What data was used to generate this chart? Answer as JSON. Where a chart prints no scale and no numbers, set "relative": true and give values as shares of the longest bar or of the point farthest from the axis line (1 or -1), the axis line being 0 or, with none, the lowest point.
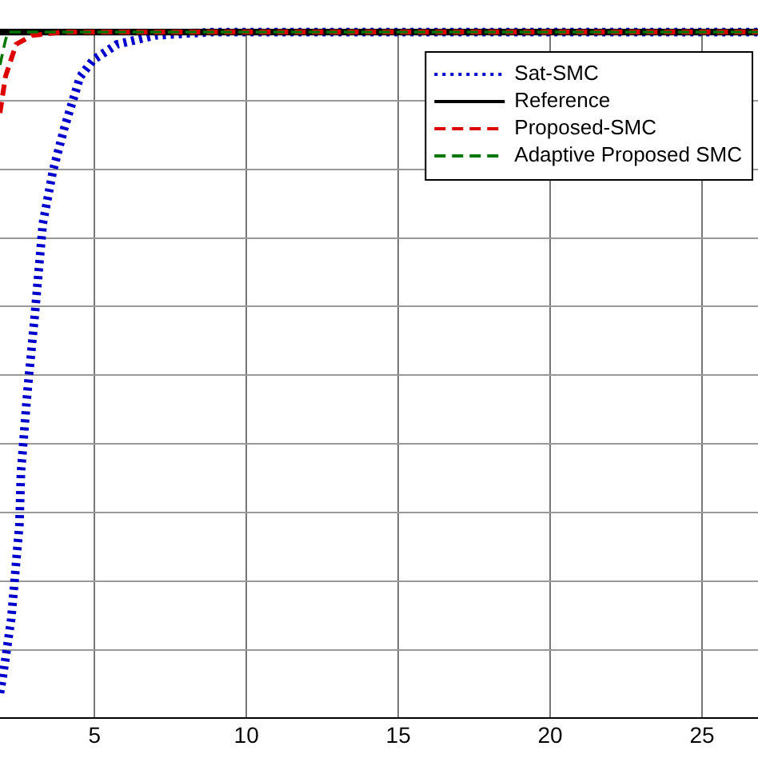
{
  "chart_data": {
    "type": "line",
    "relative": true,
    "xlim": [
      1.89,
      26.84
    ],
    "xticks": [
      5,
      10,
      15,
      20,
      25
    ],
    "grid": true,
    "legend": "top right",
    "marker": "none",
    "series": [
      {
        "name": "Sat-SMC",
        "color": "#0000cc",
        "line_style": "dotted",
        "x": [
          1.89,
          1.98,
          2.26,
          2.53,
          2.58,
          2.79,
          3.04,
          3.3,
          3.63,
          4.0,
          4.53,
          4.95,
          5.74,
          7.0,
          8.9,
          26.84
        ],
        "values": [
          0.037,
          0.06,
          0.145,
          0.283,
          0.359,
          0.475,
          0.59,
          0.721,
          0.797,
          0.859,
          0.935,
          0.959,
          0.982,
          0.995,
          1,
          1
        ]
      },
      {
        "name": "Reference",
        "color": "#000000",
        "line_style": "solid",
        "x": [
          1.89,
          26.84
        ],
        "values": [
          1,
          1
        ]
      },
      {
        "name": "Proposed-SMC",
        "color": "#dd0000",
        "line_style": "dashed",
        "x": [
          1.89,
          2.07,
          2.42,
          2.94,
          3.99,
          26.84
        ],
        "values": [
          0.882,
          0.935,
          0.982,
          0.995,
          1,
          1
        ]
      },
      {
        "name": "Adaptive Proposed SMC",
        "color": "#007700",
        "line_style": "dashed",
        "x": [
          1.89,
          2.07,
          2.16,
          26.84
        ],
        "values": [
          0.952,
          0.988,
          1,
          1
        ]
      }
    ]
  }
}
